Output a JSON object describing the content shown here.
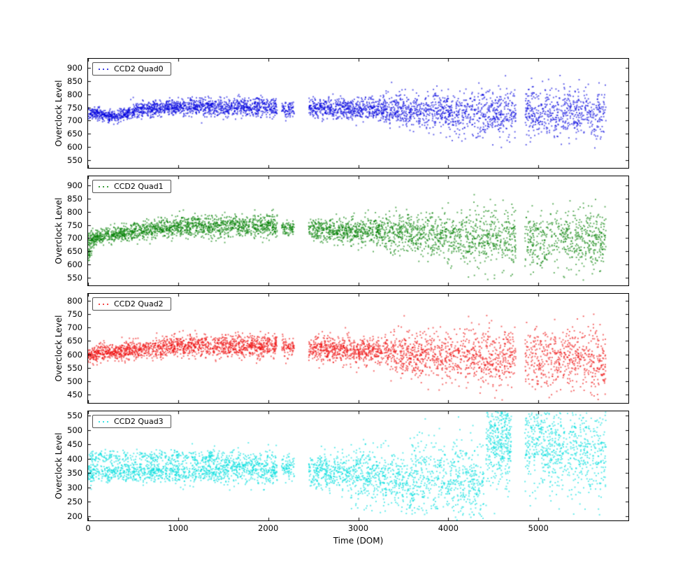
{
  "labels": {
    "xlabel": "Time (DOM)",
    "ylabel": "Overclock Level"
  },
  "axes": {
    "xlim": [
      0,
      6000
    ],
    "x_ticks": [
      0,
      1000,
      2000,
      3000,
      4000,
      5000
    ]
  },
  "segment_keys": [
    "x_start",
    "x_end",
    "mean_start",
    "mean_end",
    "sd_start",
    "sd_end",
    "n_points"
  ],
  "chart_data": [
    {
      "type": "scatter",
      "name": "CCD2 Quad0",
      "color": "#0000dd",
      "ylim": [
        520,
        935
      ],
      "y_ticks": [
        550,
        600,
        650,
        700,
        750,
        800,
        850,
        900
      ],
      "segments": [
        [
          0,
          150,
          730,
          724,
          10,
          12,
          120
        ],
        [
          150,
          320,
          722,
          716,
          12,
          12,
          130
        ],
        [
          320,
          520,
          716,
          734,
          12,
          13,
          160
        ],
        [
          520,
          900,
          736,
          752,
          14,
          15,
          300
        ],
        [
          900,
          2100,
          752,
          750,
          16,
          18,
          900
        ],
        [
          2150,
          2290,
          742,
          742,
          16,
          16,
          80
        ],
        [
          2450,
          3300,
          748,
          742,
          18,
          22,
          620
        ],
        [
          3300,
          4300,
          740,
          731,
          28,
          42,
          660
        ],
        [
          4300,
          4750,
          730,
          728,
          44,
          44,
          300
        ],
        [
          4850,
          5750,
          730,
          726,
          45,
          45,
          560
        ]
      ]
    },
    {
      "type": "scatter",
      "name": "CCD2 Quad1",
      "color": "#008000",
      "ylim": [
        520,
        935
      ],
      "y_ticks": [
        550,
        600,
        650,
        700,
        750,
        800,
        850,
        900
      ],
      "segments": [
        [
          0,
          45,
          640,
          660,
          35,
          30,
          25
        ],
        [
          0,
          80,
          688,
          696,
          22,
          20,
          80
        ],
        [
          80,
          420,
          702,
          720,
          14,
          15,
          280
        ],
        [
          420,
          1000,
          721,
          744,
          16,
          17,
          430
        ],
        [
          1000,
          2100,
          746,
          744,
          20,
          21,
          820
        ],
        [
          2150,
          2290,
          737,
          737,
          16,
          16,
          80
        ],
        [
          2450,
          3300,
          732,
          724,
          20,
          27,
          620
        ],
        [
          3300,
          4300,
          721,
          706,
          33,
          50,
          660
        ],
        [
          4300,
          4750,
          703,
          701,
          52,
          52,
          300
        ],
        [
          4850,
          5750,
          698,
          690,
          56,
          58,
          560
        ]
      ]
    },
    {
      "type": "scatter",
      "name": "CCD2 Quad2",
      "color": "#ee1111",
      "ylim": [
        420,
        825
      ],
      "y_ticks": [
        450,
        500,
        550,
        600,
        650,
        700,
        750,
        800
      ],
      "segments": [
        [
          0,
          100,
          594,
          600,
          16,
          15,
          90
        ],
        [
          100,
          420,
          605,
          613,
          14,
          15,
          260
        ],
        [
          420,
          1000,
          614,
          629,
          16,
          17,
          430
        ],
        [
          1000,
          2100,
          633,
          631,
          20,
          21,
          820
        ],
        [
          2150,
          2290,
          628,
          628,
          18,
          18,
          80
        ],
        [
          2450,
          3300,
          622,
          612,
          22,
          28,
          620
        ],
        [
          3300,
          4300,
          608,
          592,
          36,
          52,
          660
        ],
        [
          4300,
          4750,
          590,
          588,
          54,
          54,
          300
        ],
        [
          4850,
          5750,
          586,
          580,
          56,
          58,
          560
        ]
      ]
    },
    {
      "type": "scatter",
      "name": "CCD2 Quad3",
      "color": "#00dddd",
      "ylim": [
        185,
        565
      ],
      "y_ticks": [
        200,
        250,
        300,
        350,
        400,
        450,
        500,
        550
      ],
      "segments": [
        [
          0,
          1500,
          352,
          354,
          18,
          19,
          820
        ],
        [
          0,
          1500,
          408,
          406,
          11,
          12,
          330
        ],
        [
          1500,
          2100,
          368,
          366,
          26,
          26,
          440
        ],
        [
          2150,
          2290,
          368,
          368,
          22,
          22,
          80
        ],
        [
          2450,
          2900,
          362,
          356,
          28,
          30,
          310
        ],
        [
          2900,
          3500,
          346,
          330,
          44,
          58,
          430
        ],
        [
          3500,
          4400,
          326,
          316,
          62,
          72,
          620
        ],
        [
          4420,
          4700,
          465,
          470,
          75,
          75,
          400
        ],
        [
          4850,
          5250,
          472,
          475,
          88,
          88,
          430
        ],
        [
          5250,
          5750,
          428,
          415,
          75,
          78,
          360
        ]
      ]
    }
  ]
}
